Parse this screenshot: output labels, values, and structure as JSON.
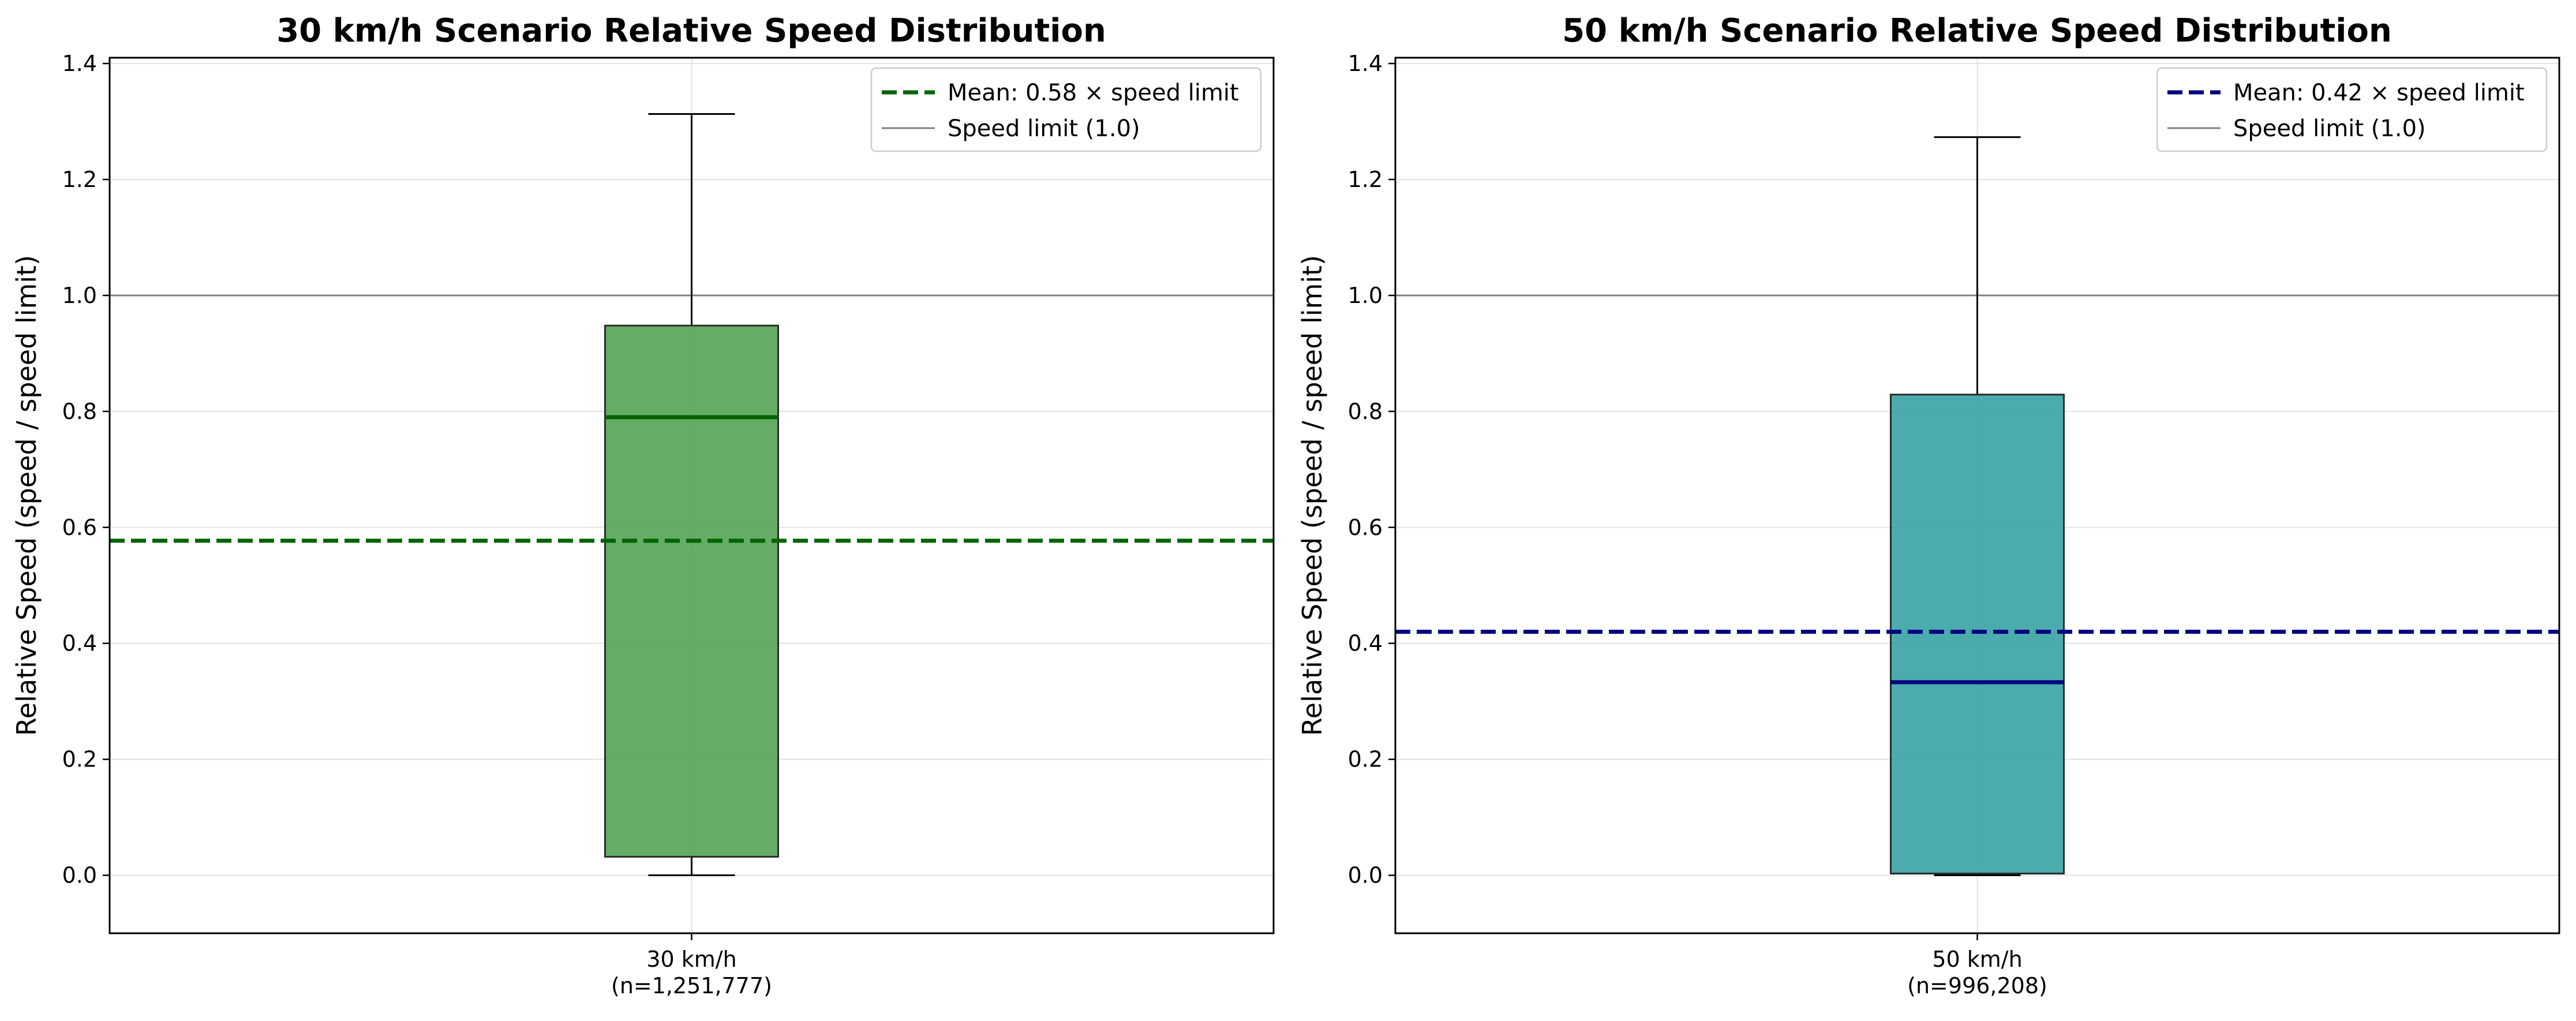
{
  "chart_data": [
    {
      "type": "box",
      "title": "30 km/h Scenario Relative Speed Distribution",
      "xlabel": "",
      "ylabel": "Relative Speed (speed / speed limit)",
      "ylim": [
        -0.1,
        1.41
      ],
      "yticks": [
        0.0,
        0.2,
        0.4,
        0.6,
        0.8,
        1.0,
        1.2,
        1.4
      ],
      "ytick_labels": [
        "0.0",
        "0.2",
        "0.4",
        "0.6",
        "0.8",
        "1.0",
        "1.2",
        "1.4"
      ],
      "grid": true,
      "legend_position": "top-right",
      "categories": [
        "30 km/h\n(n=1,251,777)"
      ],
      "category_line1": "30 km/h",
      "category_line2": "(n=1,251,777)",
      "box": {
        "whisker_low": 0.0,
        "q1": 0.032,
        "median": 0.79,
        "q3": 0.948,
        "whisker_high": 1.313
      },
      "box_color": "#4a9e4a",
      "median_color": "#006400",
      "mean": {
        "value": 0.577,
        "label": "Mean: 0.58 × speed limit",
        "color": "#006400"
      },
      "speed_limit": {
        "value": 1.0,
        "label": "Speed limit (1.0)",
        "color": "#808080"
      }
    },
    {
      "type": "box",
      "title": "50 km/h Scenario Relative Speed Distribution",
      "xlabel": "",
      "ylabel": "Relative Speed (speed / speed limit)",
      "ylim": [
        -0.1,
        1.41
      ],
      "yticks": [
        0.0,
        0.2,
        0.4,
        0.6,
        0.8,
        1.0,
        1.2,
        1.4
      ],
      "ytick_labels": [
        "0.0",
        "0.2",
        "0.4",
        "0.6",
        "0.8",
        "1.0",
        "1.2",
        "1.4"
      ],
      "grid": true,
      "legend_position": "top-right",
      "categories": [
        "50 km/h\n(n=996,208)"
      ],
      "category_line1": "50 km/h",
      "category_line2": "(n=996,208)",
      "box": {
        "whisker_low": 0.0,
        "q1": 0.003,
        "median": 0.333,
        "q3": 0.829,
        "whisker_high": 1.273
      },
      "box_color": "#2a9d9d",
      "median_color": "#000080",
      "mean": {
        "value": 0.42,
        "label": "Mean: 0.42 × speed limit",
        "color": "#000080"
      },
      "speed_limit": {
        "value": 1.0,
        "label": "Speed limit (1.0)",
        "color": "#808080"
      }
    }
  ]
}
